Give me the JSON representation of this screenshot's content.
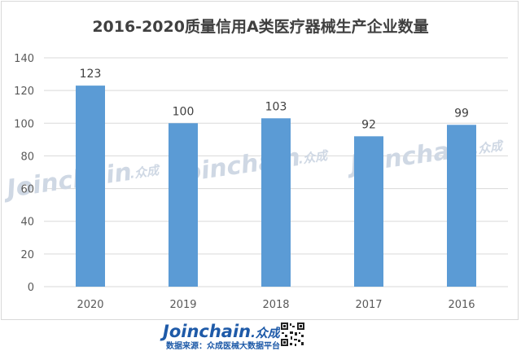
{
  "chart_data": {
    "type": "bar",
    "title": "2016-2020质量信用A类医疗器械生产企业数量",
    "categories": [
      "2020",
      "2019",
      "2018",
      "2017",
      "2016"
    ],
    "values": [
      123,
      100,
      103,
      92,
      99
    ],
    "yticks": [
      "0",
      "20",
      "40",
      "60",
      "80",
      "100",
      "120",
      "140"
    ],
    "ylim": [
      0,
      140
    ],
    "xlabel": "",
    "ylabel": "",
    "grid": true,
    "bar_color": "#5b9bd5",
    "watermark": "Joinchain",
    "watermark_cn": ".众成"
  },
  "footer": {
    "logo": "Joinchain",
    "logo_cn": ".众成",
    "source": "数据来源：众成医械大数据平台",
    "brand_color": "#1e5aa8"
  }
}
